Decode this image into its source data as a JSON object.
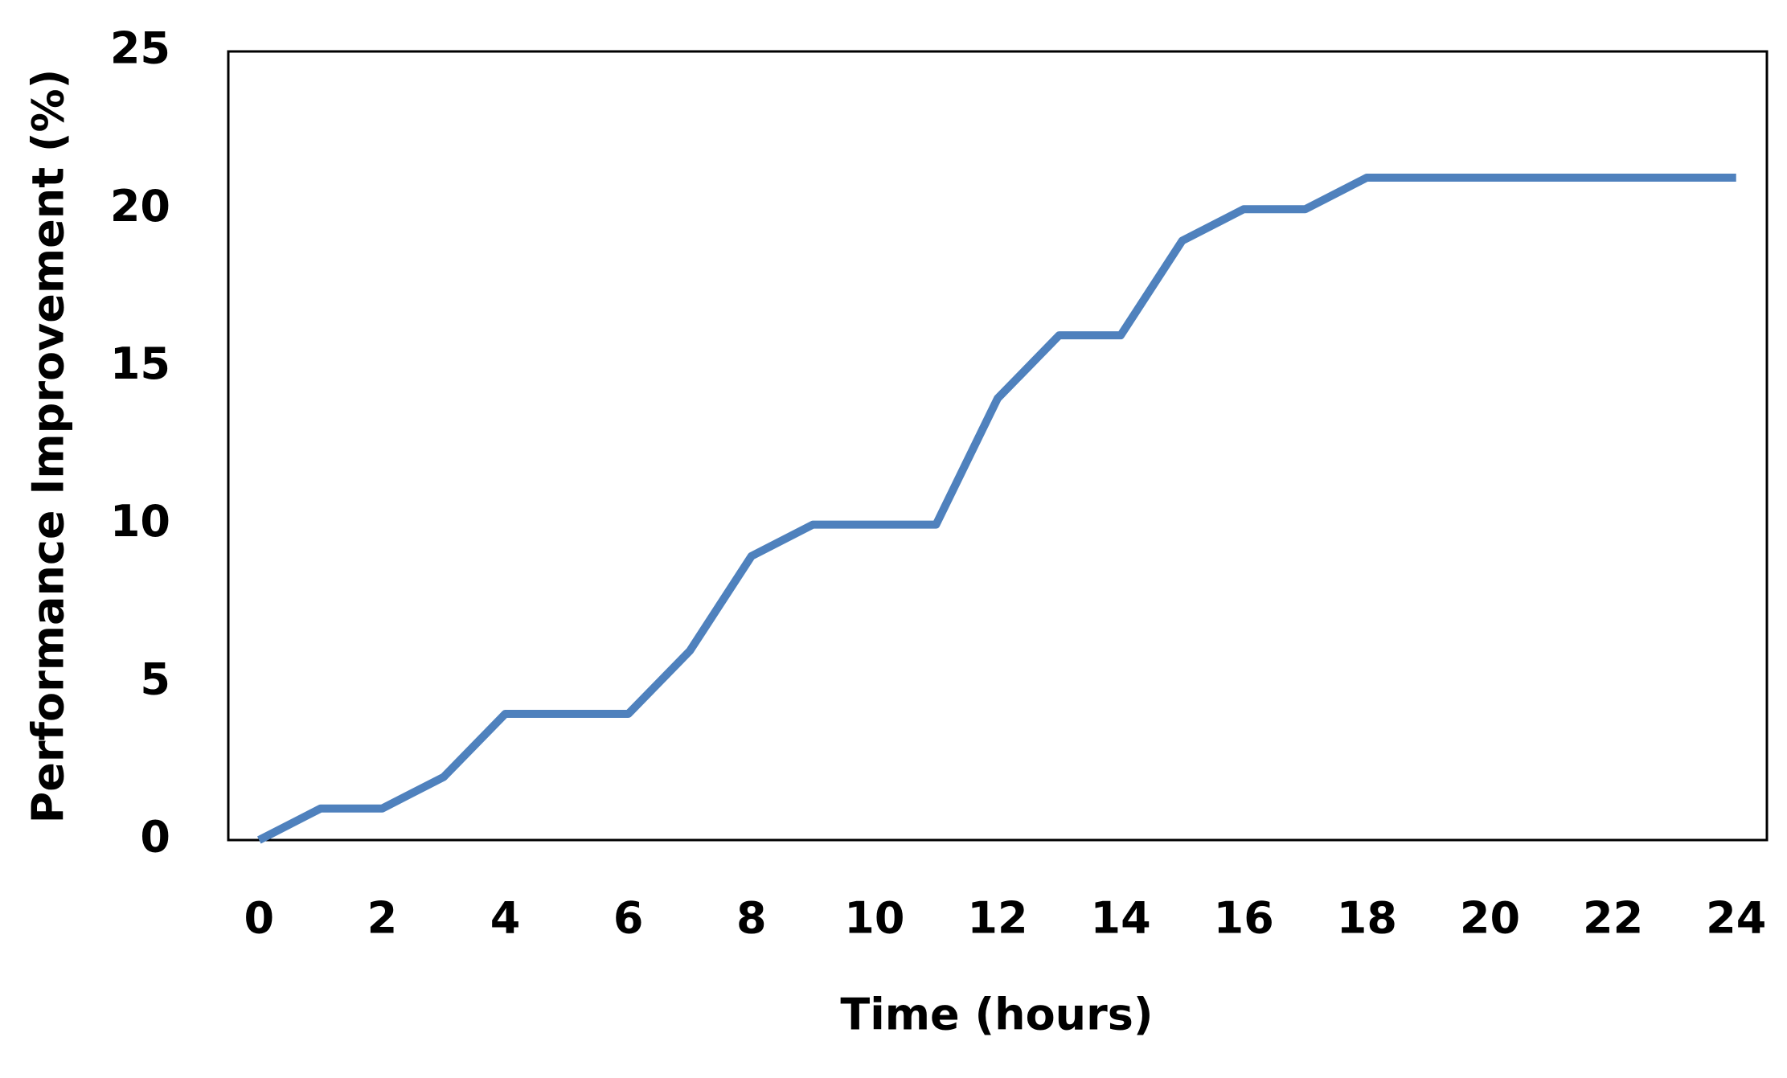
{
  "chart_data": {
    "type": "line",
    "x_label": "Time (hours)",
    "y_label": "Performance Improvement (%)",
    "x": [
      0,
      1,
      2,
      3,
      4,
      5,
      6,
      7,
      8,
      9,
      10,
      11,
      12,
      13,
      14,
      15,
      16,
      17,
      18,
      19,
      20,
      21,
      22,
      23,
      24
    ],
    "series": [
      {
        "color": "#4f81bd",
        "values": [
          0,
          1,
          1,
          2,
          4,
          4,
          4,
          6,
          9,
          10,
          10,
          10,
          14,
          16,
          16,
          19,
          20,
          20,
          21,
          21,
          21,
          21,
          21,
          21,
          21
        ]
      }
    ],
    "xlim": [
      -0.5,
      24.5
    ],
    "xticks": [
      0,
      2,
      4,
      6,
      8,
      10,
      12,
      14,
      16,
      18,
      20,
      22,
      24
    ],
    "ylim": [
      0,
      25
    ],
    "yticks": [
      0,
      5,
      10,
      15,
      20,
      25
    ],
    "grid": false
  }
}
